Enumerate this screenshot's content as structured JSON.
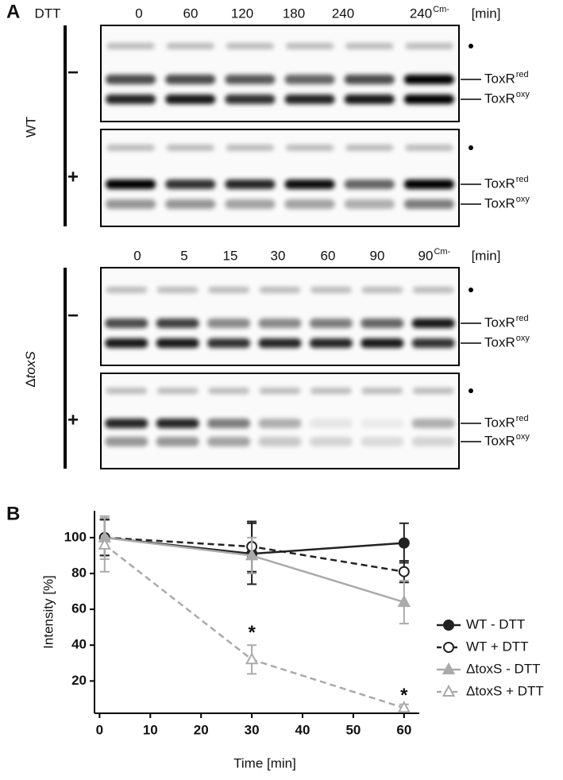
{
  "panel_a": {
    "label": "A",
    "dtt": "DTT",
    "unit": "[min]",
    "wt": "WT",
    "delta": "Δ",
    "toxs": "toxS",
    "minus": "−",
    "plus": "+",
    "toxr": "ToxR",
    "red": "red",
    "oxy": "oxy",
    "cm": "Cm-",
    "wt_lanes": [
      "0",
      "60",
      "120",
      "180",
      "240",
      "240"
    ],
    "toxs_lanes": [
      "0",
      "5",
      "15",
      "30",
      "60",
      "90",
      "90"
    ]
  },
  "chart_data": {
    "type": "line",
    "label": "B",
    "xlabel": "Time [min]",
    "ylabel": "Intensity [%]",
    "x": [
      1,
      30,
      60
    ],
    "xlim": [
      -1,
      63
    ],
    "xticks": [
      0,
      10,
      20,
      30,
      40,
      50,
      60
    ],
    "ylim": [
      2,
      115
    ],
    "yticks": [
      20,
      40,
      60,
      80,
      100
    ],
    "series": [
      {
        "name": "WT - DTT",
        "color": "#222222",
        "marker": "circle",
        "filled": true,
        "dashed": false,
        "values": [
          100,
          91,
          97
        ],
        "errors": [
          10,
          17,
          11
        ]
      },
      {
        "name": "WT + DTT",
        "color": "#222222",
        "marker": "circle",
        "filled": false,
        "dashed": true,
        "values": [
          100,
          95,
          81
        ],
        "errors": [
          10,
          14,
          6
        ]
      },
      {
        "name": "ΔtoxS - DTT",
        "color": "#aaaaaa",
        "marker": "triangle",
        "filled": true,
        "dashed": false,
        "values": [
          100,
          90,
          64
        ],
        "errors": [
          12,
          10,
          12
        ]
      },
      {
        "name": "ΔtoxS + DTT",
        "color": "#aaaaaa",
        "marker": "triangle",
        "filled": false,
        "dashed": true,
        "values": [
          96,
          32,
          5
        ],
        "errors": [
          15,
          8,
          2
        ]
      }
    ],
    "annotations": [
      {
        "text": "*",
        "x": 30,
        "y": 50
      },
      {
        "text": "*",
        "x": 60,
        "y": 15
      }
    ]
  }
}
